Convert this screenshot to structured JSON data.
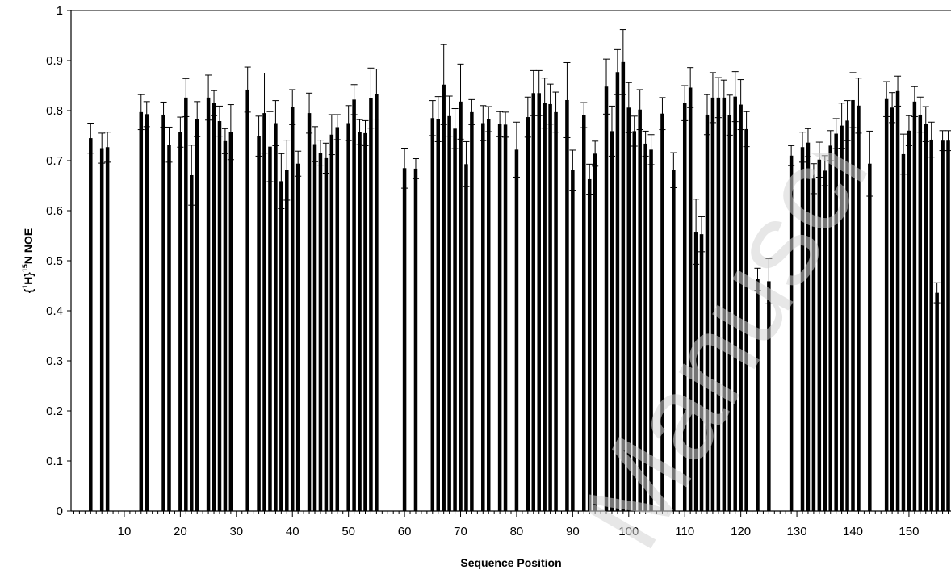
{
  "chart_data": {
    "type": "bar",
    "xlabel": "Sequence Position",
    "ylabel_parts": {
      "open": "{",
      "sup1": "1",
      "h": "H}",
      "sup2": "15",
      "rest": "N NOE"
    },
    "ylim": [
      0,
      1
    ],
    "xlim": [
      0.5,
      157.5
    ],
    "y_ticks": [
      0,
      0.1,
      0.2,
      0.3,
      0.4,
      0.5,
      0.6,
      0.7,
      0.8,
      0.9,
      1
    ],
    "y_tick_labels": [
      "0",
      "0.1",
      "0.2",
      "0.3",
      "0.4",
      "0.5",
      "0.6",
      "0.7",
      "0.8",
      "0.9",
      "1"
    ],
    "x_ticks": [
      10,
      20,
      30,
      40,
      50,
      60,
      70,
      80,
      90,
      100,
      110,
      120,
      130,
      140,
      150
    ],
    "x_tick_labels": [
      "10",
      "20",
      "30",
      "40",
      "50",
      "60",
      "70",
      "80",
      "90",
      "100",
      "110",
      "120",
      "130",
      "140",
      "150"
    ],
    "grid": false,
    "bar_color": "#000000",
    "error_bars": "symmetric",
    "x": [
      4,
      6,
      7,
      13,
      14,
      17,
      18,
      20,
      21,
      22,
      23,
      25,
      26,
      27,
      28,
      29,
      32,
      34,
      35,
      36,
      37,
      38,
      39,
      40,
      41,
      43,
      44,
      45,
      46,
      47,
      48,
      50,
      51,
      52,
      53,
      54,
      55,
      60,
      62,
      65,
      66,
      67,
      68,
      69,
      70,
      71,
      72,
      74,
      75,
      77,
      78,
      80,
      82,
      83,
      84,
      85,
      86,
      87,
      89,
      90,
      92,
      93,
      94,
      96,
      97,
      98,
      99,
      100,
      101,
      102,
      103,
      104,
      106,
      108,
      110,
      111,
      112,
      113,
      114,
      115,
      116,
      117,
      118,
      119,
      120,
      121,
      123,
      125,
      129,
      131,
      132,
      133,
      134,
      135,
      136,
      137,
      138,
      139,
      140,
      141,
      143,
      146,
      147,
      148,
      149,
      150,
      151,
      152,
      153,
      154,
      155,
      156,
      157
    ],
    "values": [
      0.745,
      0.725,
      0.727,
      0.797,
      0.793,
      0.792,
      0.732,
      0.757,
      0.826,
      0.671,
      0.783,
      0.826,
      0.815,
      0.779,
      0.739,
      0.757,
      0.842,
      0.749,
      0.795,
      0.728,
      0.775,
      0.659,
      0.681,
      0.807,
      0.694,
      0.795,
      0.733,
      0.716,
      0.705,
      0.752,
      0.767,
      0.775,
      0.822,
      0.757,
      0.755,
      0.825,
      0.833,
      0.685,
      0.684,
      0.785,
      0.783,
      0.852,
      0.789,
      0.764,
      0.818,
      0.693,
      0.797,
      0.775,
      0.783,
      0.773,
      0.772,
      0.722,
      0.787,
      0.835,
      0.835,
      0.815,
      0.813,
      0.797,
      0.821,
      0.681,
      0.791,
      0.663,
      0.714,
      0.848,
      0.759,
      0.877,
      0.897,
      0.806,
      0.759,
      0.802,
      0.734,
      0.722,
      0.794,
      0.681,
      0.815,
      0.846,
      0.558,
      0.553,
      0.792,
      0.826,
      0.826,
      0.826,
      0.791,
      0.828,
      0.812,
      0.763,
      0.463,
      0.459,
      0.71,
      0.727,
      0.736,
      0.664,
      0.702,
      0.68,
      0.73,
      0.754,
      0.77,
      0.78,
      0.821,
      0.81,
      0.694,
      0.823,
      0.806,
      0.839,
      0.713,
      0.76,
      0.818,
      0.792,
      0.773,
      0.742,
      0.436,
      0.74,
      0.74
    ],
    "errors": [
      0.03,
      0.03,
      0.03,
      0.035,
      0.025,
      0.025,
      0.035,
      0.03,
      0.038,
      0.06,
      0.035,
      0.045,
      0.025,
      0.03,
      0.025,
      0.055,
      0.045,
      0.04,
      0.08,
      0.07,
      0.045,
      0.055,
      0.06,
      0.035,
      0.025,
      0.04,
      0.035,
      0.025,
      0.03,
      0.04,
      0.025,
      0.035,
      0.03,
      0.025,
      0.025,
      0.06,
      0.05,
      0.04,
      0.02,
      0.035,
      0.045,
      0.08,
      0.04,
      0.04,
      0.075,
      0.045,
      0.025,
      0.035,
      0.025,
      0.025,
      0.025,
      0.055,
      0.04,
      0.045,
      0.045,
      0.05,
      0.04,
      0.04,
      0.075,
      0.04,
      0.025,
      0.03,
      0.025,
      0.055,
      0.05,
      0.045,
      0.065,
      0.05,
      0.03,
      0.04,
      0.025,
      0.03,
      0.032,
      0.035,
      0.035,
      0.04,
      0.065,
      0.035,
      0.04,
      0.05,
      0.04,
      0.035,
      0.04,
      0.05,
      0.05,
      0.035,
      0.022,
      0.045,
      0.02,
      0.03,
      0.028,
      0.03,
      0.035,
      0.03,
      0.03,
      0.03,
      0.045,
      0.04,
      0.055,
      0.055,
      0.065,
      0.035,
      0.03,
      0.03,
      0.04,
      0.03,
      0.03,
      0.035,
      0.035,
      0.035,
      0.02,
      0.02,
      0.02
    ]
  },
  "watermark": {
    "text": "Manuscript",
    "color": "#d3d3d3"
  }
}
